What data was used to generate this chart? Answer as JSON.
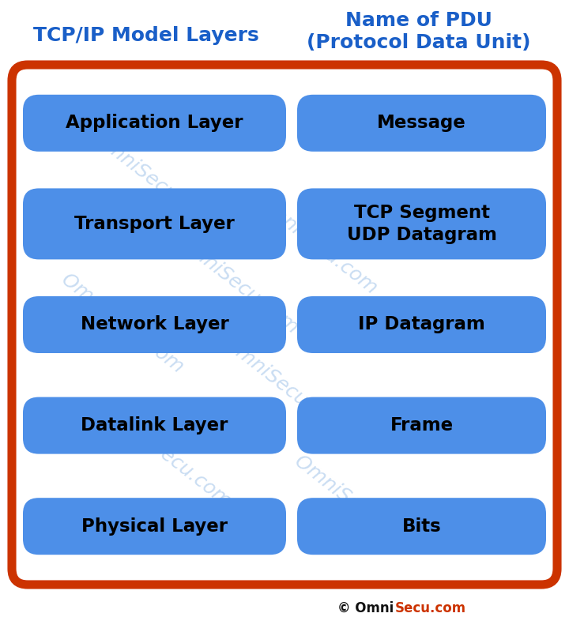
{
  "title_left": "TCP/IP Model Layers",
  "title_right": "Name of PDU\n(Protocol Data Unit)",
  "title_color": "#1a5fc8",
  "bg_color": "#ffffff",
  "outer_box_edge_color": "#CC3300",
  "outer_box_face_color": "#ffffff",
  "button_color": "#4d8fe8",
  "button_text_color": "#000000",
  "watermark_color": "#7aaae0",
  "watermark_text": "OmniSecu.com",
  "copyright_black": "© Omni",
  "copyright_red": "Secu.com",
  "layers": [
    {
      "left": "Application Layer",
      "right": "Message",
      "double": false
    },
    {
      "left": "Transport Layer",
      "right": "TCP Segment\nUDP Datagram",
      "double": true
    },
    {
      "left": "Network Layer",
      "right": "IP Datagram",
      "double": false
    },
    {
      "left": "Datalink Layer",
      "right": "Frame",
      "double": false
    },
    {
      "left": "Physical Layer",
      "right": "Bits",
      "double": false
    }
  ],
  "fig_width": 7.2,
  "fig_height": 8.0,
  "dpi": 100
}
